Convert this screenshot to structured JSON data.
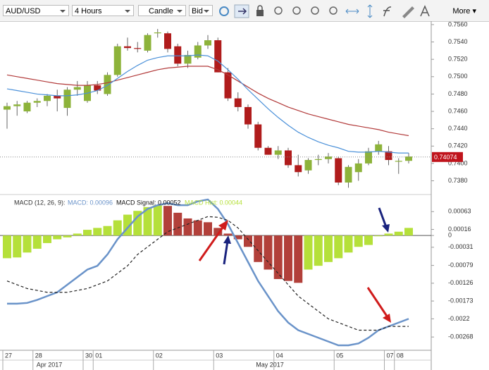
{
  "toolbar": {
    "symbol": "AUD/USD",
    "timeframe": "4 Hours",
    "chart_type": "Candle",
    "price_side": "Bid",
    "more": "More"
  },
  "chart_data": [
    {
      "type": "candlestick",
      "categories": [
        "27",
        null,
        null,
        "28",
        null,
        null,
        null,
        null,
        "30",
        "01",
        null,
        null,
        null,
        null,
        null,
        "02",
        null,
        null,
        null,
        null,
        null,
        "03",
        null,
        null,
        null,
        null,
        null,
        "04",
        null,
        null,
        null,
        null,
        null,
        "05",
        null,
        null,
        null,
        null,
        "07",
        "08",
        null
      ],
      "months": [
        "Apr 2017",
        "May 2017"
      ],
      "open": [
        0.7462,
        0.7466,
        0.746,
        0.747,
        0.7472,
        0.7478,
        0.7464,
        0.7485,
        0.7472,
        0.749,
        0.748,
        0.7502,
        0.7535,
        0.7533,
        0.753,
        0.755,
        0.755,
        0.7535,
        0.7515,
        0.7522,
        0.7536,
        0.7542,
        0.7505,
        0.7475,
        0.7465,
        0.7445,
        0.7418,
        0.741,
        0.7415,
        0.7398,
        0.7392,
        0.7404,
        0.7405,
        0.7406,
        0.7378,
        0.739,
        0.74,
        0.7414,
        0.7414,
        0.7402,
        0.7403
      ],
      "high": [
        0.747,
        0.7472,
        0.7472,
        0.7475,
        0.748,
        0.7485,
        0.7488,
        0.7495,
        0.7495,
        0.7495,
        0.7505,
        0.7538,
        0.7545,
        0.754,
        0.755,
        0.7555,
        0.7552,
        0.7538,
        0.753,
        0.754,
        0.7548,
        0.7545,
        0.751,
        0.7482,
        0.7468,
        0.7448,
        0.742,
        0.742,
        0.7418,
        0.741,
        0.7406,
        0.741,
        0.7412,
        0.7408,
        0.7398,
        0.7405,
        0.7418,
        0.7426,
        0.742,
        0.7406,
        0.7412
      ],
      "low": [
        0.744,
        0.7455,
        0.7458,
        0.7465,
        0.7466,
        0.746,
        0.7455,
        0.7478,
        0.747,
        0.748,
        0.7478,
        0.75,
        0.753,
        0.7528,
        0.7528,
        0.7545,
        0.7528,
        0.7512,
        0.751,
        0.752,
        0.7532,
        0.7505,
        0.7472,
        0.746,
        0.744,
        0.7415,
        0.741,
        0.7405,
        0.7395,
        0.7385,
        0.7388,
        0.7398,
        0.74,
        0.7375,
        0.7372,
        0.738,
        0.7398,
        0.741,
        0.7398,
        0.7388,
        0.74
      ],
      "close": [
        0.7466,
        0.7468,
        0.747,
        0.7472,
        0.7478,
        0.7475,
        0.7485,
        0.7488,
        0.749,
        0.7484,
        0.7502,
        0.7535,
        0.7533,
        0.7532,
        0.7548,
        0.7551,
        0.7532,
        0.7515,
        0.7525,
        0.7536,
        0.7542,
        0.7505,
        0.7475,
        0.7465,
        0.7445,
        0.7418,
        0.741,
        0.7415,
        0.7398,
        0.739,
        0.7404,
        0.7405,
        0.7408,
        0.7378,
        0.7396,
        0.74,
        0.7414,
        0.7422,
        0.7404,
        0.7403,
        0.7408
      ],
      "up_color": "#8db33a",
      "down_color": "#b01c1c",
      "series": [
        {
          "name": "slow",
          "color": "#b23a3a",
          "values": [
            0.7502,
            0.75,
            0.7498,
            0.7496,
            0.7494,
            0.7492,
            0.7491,
            0.749,
            0.749,
            0.7491,
            0.7493,
            0.7496,
            0.7499,
            0.7502,
            0.7505,
            0.7508,
            0.751,
            0.7511,
            0.7512,
            0.7512,
            0.7512,
            0.7508,
            0.7502,
            0.7495,
            0.7488,
            0.7481,
            0.7475,
            0.747,
            0.7465,
            0.7461,
            0.7457,
            0.7454,
            0.7451,
            0.7448,
            0.7445,
            0.7443,
            0.7441,
            0.7439,
            0.7436,
            0.7434,
            0.7432
          ]
        },
        {
          "name": "fast",
          "color": "#4a90d9",
          "values": [
            0.7486,
            0.7484,
            0.7482,
            0.748,
            0.7479,
            0.7478,
            0.7478,
            0.7479,
            0.7481,
            0.7484,
            0.749,
            0.7498,
            0.7506,
            0.7513,
            0.7519,
            0.7522,
            0.7524,
            0.7524,
            0.7524,
            0.7525,
            0.7524,
            0.7518,
            0.7508,
            0.7497,
            0.7485,
            0.7474,
            0.7463,
            0.7453,
            0.7444,
            0.7436,
            0.743,
            0.7425,
            0.7421,
            0.7418,
            0.7414,
            0.7413,
            0.7413,
            0.7414,
            0.7413,
            0.7412,
            0.7412
          ]
        }
      ],
      "current_price": 0.74074,
      "current_color": "#c0141c",
      "ylim": [
        0.7365,
        0.7564
      ],
      "yticks": [
        {
          "value": 0.756,
          "label": "0.7560"
        },
        {
          "value": 0.754,
          "label": "0.7540"
        },
        {
          "value": 0.752,
          "label": "0.7520"
        },
        {
          "value": 0.75,
          "label": "0.7500"
        },
        {
          "value": 0.748,
          "label": "0.7480"
        },
        {
          "value": 0.746,
          "label": "0.7460"
        },
        {
          "value": 0.744,
          "label": "0.7440"
        },
        {
          "value": 0.742,
          "label": "0.7420"
        },
        {
          "value": 0.74,
          "label": "0.7400"
        },
        {
          "value": 0.738,
          "label": "0.7380"
        }
      ]
    },
    {
      "type": "macd",
      "title": "MACD (12, 26, 9):",
      "legend_text": [
        "MACD: 0.00096",
        "MACD Signal: 0.00052",
        "MACD Hist: 0.00044"
      ],
      "histogram": [
        -0.0006,
        -0.00058,
        -0.00045,
        -0.00035,
        -0.0002,
        -0.0001,
        -5e-05,
        5e-05,
        0.00015,
        0.0002,
        0.00025,
        0.0004,
        0.00055,
        0.00065,
        0.00075,
        0.0008,
        0.00078,
        0.0006,
        0.00045,
        0.0004,
        0.00035,
        0.0002,
        5e-05,
        -0.0001,
        -0.0003,
        -0.0007,
        -0.0009,
        -0.00115,
        -0.0012,
        -0.00125,
        -0.0009,
        -0.0008,
        -0.0007,
        -0.0006,
        -0.00045,
        -0.0003,
        -0.00025,
        -2e-05,
        5e-05,
        0.0001,
        0.0002
      ],
      "up_color": "#b5e03a",
      "down_color": "#b2403a",
      "series": [
        {
          "name": "MACD",
          "color": "#6a93c9",
          "values": [
            -0.0018,
            -0.0018,
            -0.00178,
            -0.0017,
            -0.0016,
            -0.0015,
            -0.0013,
            -0.0011,
            -0.0009,
            -0.0008,
            -0.0005,
            -0.0001,
            0.0002,
            0.0005,
            0.0007,
            0.0008,
            0.00085,
            0.0008,
            0.0008,
            0.0009,
            0.00095,
            0.0007,
            0.0003,
            -0.0002,
            -0.0007,
            -0.0012,
            -0.0016,
            -0.002,
            -0.0023,
            -0.0025,
            -0.0026,
            -0.0027,
            -0.0028,
            -0.0029,
            -0.0029,
            -0.00285,
            -0.0027,
            -0.0025,
            -0.0024,
            -0.0023,
            -0.0022
          ]
        },
        {
          "name": "MACD Signal",
          "color": "#222222",
          "dashed": true,
          "values": [
            -0.0012,
            -0.0013,
            -0.0014,
            -0.00145,
            -0.0015,
            -0.0015,
            -0.0015,
            -0.00145,
            -0.0014,
            -0.0013,
            -0.0012,
            -0.001,
            -0.0008,
            -0.0005,
            -0.0003,
            -0.0001,
            0.0001,
            0.0002,
            0.0003,
            0.0004,
            0.0005,
            0.00048,
            0.0004,
            0.0002,
            -0.0001,
            -0.0004,
            -0.0007,
            -0.001,
            -0.0013,
            -0.0016,
            -0.0018,
            -0.002,
            -0.0022,
            -0.0023,
            -0.0024,
            -0.0025,
            -0.0025,
            -0.0025,
            -0.0024,
            -0.0024,
            -0.0024
          ]
        }
      ],
      "ylim": [
        -0.00303,
        0.00097
      ],
      "yticks": [
        0.00063,
        0.00016,
        0,
        -0.00031,
        -0.00079,
        -0.00126,
        -0.00173,
        -0.0022,
        -0.00268
      ]
    }
  ]
}
